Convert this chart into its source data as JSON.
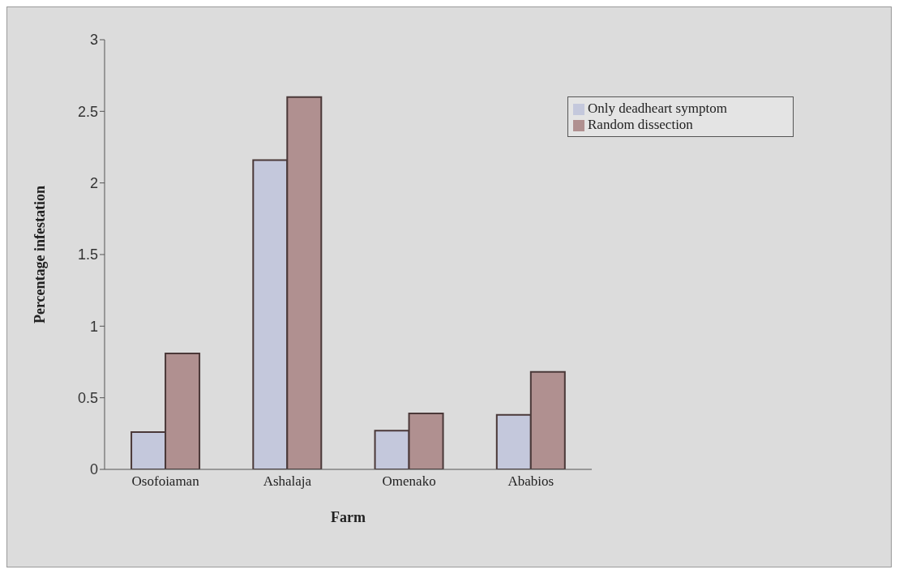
{
  "chart_data": {
    "type": "bar",
    "xlabel": "Farm",
    "ylabel": "Percentage infestation",
    "categories": [
      "Osofoiaman",
      "Ashalaja",
      "Omenako",
      "Ababios"
    ],
    "series": [
      {
        "name": "Only deadheart symptom",
        "color": "#c4c8dc",
        "values": [
          0.26,
          2.16,
          0.27,
          0.38
        ]
      },
      {
        "name": "Random  dissection",
        "color": "#b09090",
        "values": [
          0.81,
          2.6,
          0.39,
          0.68
        ]
      }
    ],
    "ylim": [
      0,
      3
    ],
    "yticks": [
      0,
      0.5,
      1,
      1.5,
      2,
      2.5,
      3
    ],
    "grid": false,
    "legend": "top right"
  }
}
